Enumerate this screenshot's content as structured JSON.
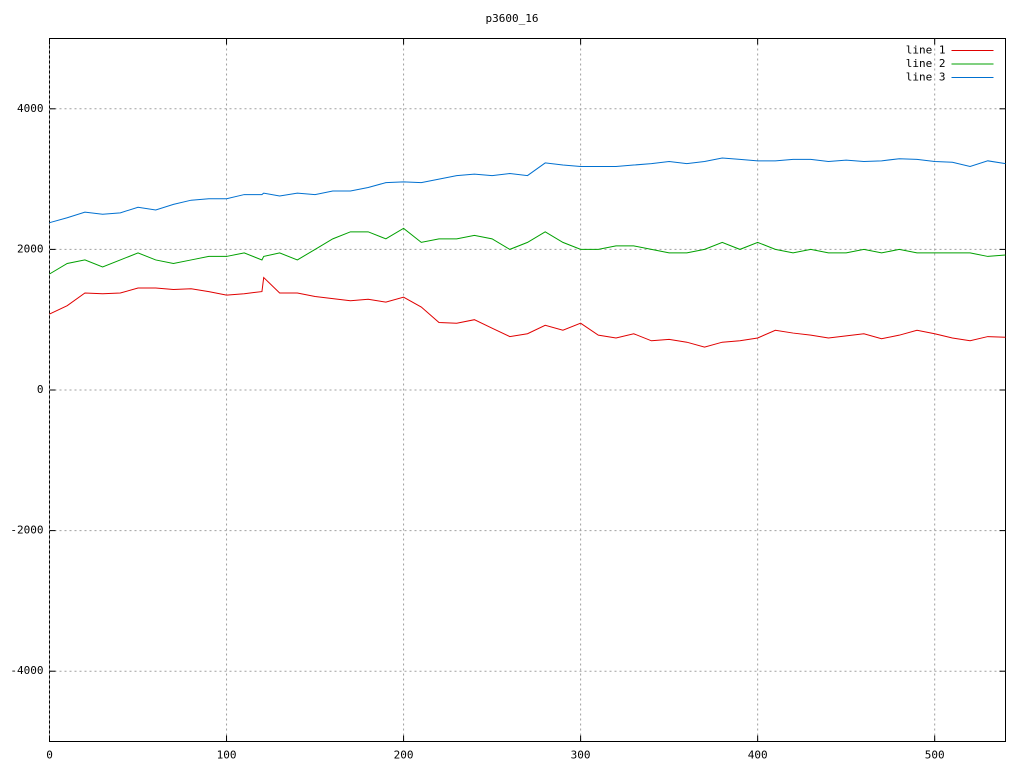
{
  "chart_data": {
    "type": "line",
    "title": "p3600_16",
    "x": [
      0,
      10,
      20,
      30,
      40,
      50,
      60,
      70,
      80,
      90,
      100,
      110,
      120,
      121,
      130,
      140,
      150,
      160,
      170,
      180,
      190,
      200,
      210,
      220,
      230,
      240,
      250,
      260,
      270,
      280,
      290,
      300,
      310,
      320,
      330,
      340,
      350,
      360,
      370,
      380,
      390,
      400,
      410,
      420,
      430,
      440,
      450,
      460,
      470,
      480,
      490,
      500,
      510,
      520,
      530,
      540
    ],
    "series": [
      {
        "name": "line 1",
        "color": "#e00000",
        "values": [
          1080,
          1200,
          1380,
          1370,
          1380,
          1450,
          1450,
          1430,
          1440,
          1400,
          1350,
          1370,
          1400,
          1600,
          1380,
          1380,
          1330,
          1300,
          1270,
          1290,
          1250,
          1320,
          1180,
          960,
          950,
          1000,
          880,
          760,
          800,
          920,
          850,
          950,
          780,
          740,
          800,
          700,
          720,
          680,
          610,
          680,
          700,
          740,
          850,
          810,
          780,
          740,
          770,
          800,
          730,
          780,
          850,
          800,
          740,
          700,
          760,
          750
        ]
      },
      {
        "name": "line 2",
        "color": "#00a000",
        "values": [
          1650,
          1800,
          1850,
          1750,
          1850,
          1950,
          1850,
          1800,
          1850,
          1900,
          1900,
          1950,
          1850,
          1900,
          1950,
          1850,
          2000,
          2150,
          2250,
          2250,
          2150,
          2300,
          2100,
          2150,
          2150,
          2200,
          2150,
          2000,
          2100,
          2250,
          2100,
          2000,
          2000,
          2050,
          2050,
          2000,
          1950,
          1950,
          2000,
          2100,
          2000,
          2100,
          2000,
          1950,
          2000,
          1950,
          1950,
          2000,
          1950,
          2000,
          1950,
          1950,
          1950,
          1950,
          1900,
          1920
        ]
      },
      {
        "name": "line 3",
        "color": "#0070d0",
        "values": [
          2380,
          2450,
          2530,
          2500,
          2520,
          2600,
          2560,
          2640,
          2700,
          2720,
          2720,
          2780,
          2780,
          2800,
          2760,
          2800,
          2780,
          2830,
          2830,
          2880,
          2950,
          2960,
          2950,
          3000,
          3050,
          3070,
          3050,
          3080,
          3050,
          3230,
          3200,
          3180,
          3180,
          3180,
          3200,
          3220,
          3250,
          3220,
          3250,
          3300,
          3280,
          3260,
          3260,
          3280,
          3280,
          3250,
          3270,
          3250,
          3260,
          3290,
          3280,
          3250,
          3240,
          3180,
          3260,
          3220
        ]
      }
    ],
    "xlim": [
      0,
      540
    ],
    "xticks": [
      0,
      100,
      200,
      300,
      400,
      500
    ],
    "ylim": [
      -5000,
      5000
    ],
    "yticks": [
      -4000,
      -2000,
      0,
      2000,
      4000
    ],
    "grid": true,
    "legend": "top-right"
  }
}
